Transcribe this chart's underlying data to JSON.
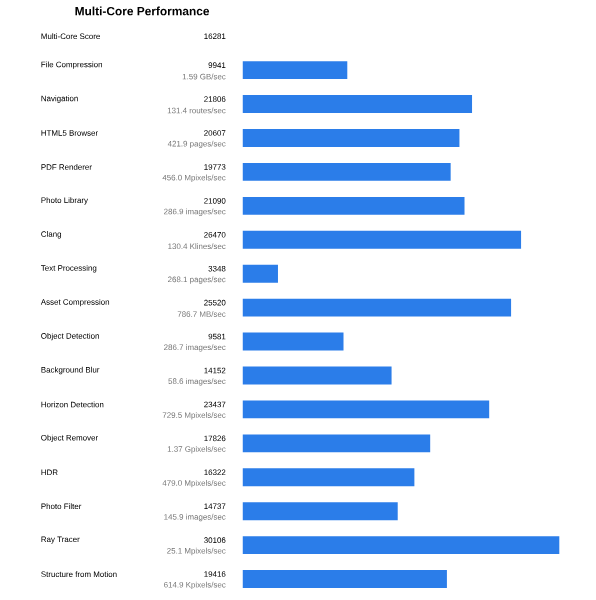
{
  "chart_data": {
    "type": "bar",
    "orientation": "horizontal",
    "title": "Multi-Core Performance",
    "data_labels": true,
    "color": "#2b7de9",
    "categories": [
      "File Compression",
      "Navigation",
      "HTML5 Browser",
      "PDF Renderer",
      "Photo Library",
      "Clang",
      "Text Processing",
      "Asset Compression",
      "Object Detection",
      "Background Blur",
      "Horizon Detection",
      "Object Remover",
      "HDR",
      "Photo Filter",
      "Ray Tracer",
      "Structure from Motion"
    ],
    "values": [
      9941,
      21806,
      20607,
      19773,
      21090,
      26470,
      3348,
      25520,
      9581,
      14152,
      23437,
      17826,
      16322,
      14737,
      30106,
      19416
    ],
    "annotations": [
      "Multi-Core Score",
      "16281",
      "1.59 GB/sec",
      "131.4 routes/sec",
      "421.9 pages/sec",
      "456.0 Mpixels/sec",
      "286.9 images/sec",
      "130.4 Klines/sec",
      "268.1 pages/sec",
      "786.7 MB/sec",
      "286.7 images/sec",
      "58.6 images/sec",
      "729.5 Mpixels/sec",
      "1.37 Gpixels/sec",
      "479.0 Mpixels/sec",
      "145.9 images/sec",
      "25.1 Mpixels/sec",
      "614.9 Kpixels/sec"
    ]
  }
}
